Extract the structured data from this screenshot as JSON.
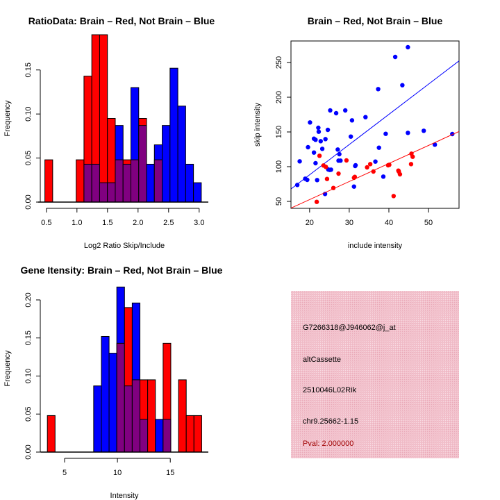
{
  "colors": {
    "brain": "#ff0000",
    "not_brain": "#0000ff",
    "overlap": "#800080",
    "info_bg": "#f2c1cc",
    "pval": "#a00000"
  },
  "chart_data": [
    {
      "type": "bar",
      "id": "ratio-hist",
      "title": "RatioData: Brain – Red, Not Brain – Blue",
      "xlabel": "Log2 Ratio Skip/Include",
      "ylabel": "Frequency",
      "xlim": [
        0.4,
        3.15
      ],
      "ylim": [
        0,
        0.19
      ],
      "xticks": [
        "0.5",
        "1.0",
        "1.5",
        "2.0",
        "2.5",
        "3.0"
      ],
      "yticks": [
        "0.00",
        "0.05",
        "0.10",
        "0.15"
      ],
      "bin_start": 0.475,
      "bin_width": 0.128,
      "series": [
        {
          "name": "Brain",
          "color": "#ff0000",
          "values": [
            0.048,
            0,
            0,
            0,
            0.048,
            0.143,
            0.19,
            0.19,
            0.095,
            0.048,
            0.048,
            0.048,
            0.095,
            0,
            0.048,
            0,
            0,
            0,
            0,
            0
          ]
        },
        {
          "name": "Not Brain",
          "color": "#0000ff",
          "values": [
            0,
            0,
            0,
            0,
            0,
            0.043,
            0.043,
            0.022,
            0.022,
            0.087,
            0.043,
            0.13,
            0.087,
            0.043,
            0.065,
            0.087,
            0.152,
            0.109,
            0.043,
            0.022
          ]
        }
      ]
    },
    {
      "type": "scatter",
      "id": "intensity-scatter",
      "title": "Brain – Red, Not Brain – Blue",
      "xlabel": "include intensity",
      "ylabel": "skip intensity",
      "xlim": [
        15.3,
        57.7
      ],
      "ylim": [
        40,
        281
      ],
      "xticks": [
        "20",
        "30",
        "40",
        "50"
      ],
      "yticks": [
        "50",
        "100",
        "150",
        "200",
        "250"
      ],
      "series": [
        {
          "name": "Not Brain",
          "color": "#0000ff",
          "fit": {
            "slope": 4.35,
            "intercept": 1.3
          },
          "points": [
            [
              16.9,
              73.7
            ],
            [
              17.5,
              107.7
            ],
            [
              18.9,
              82.7
            ],
            [
              19.4,
              81
            ],
            [
              19.6,
              128
            ],
            [
              20.1,
              163.7
            ],
            [
              21.1,
              120.3
            ],
            [
              21.1,
              140.3
            ],
            [
              21.5,
              138.7
            ],
            [
              21.5,
              105
            ],
            [
              21.9,
              80.7
            ],
            [
              22.2,
              156
            ],
            [
              22.3,
              150.3
            ],
            [
              22.8,
              136.7
            ],
            [
              23.2,
              125.7
            ],
            [
              23.9,
              60.7
            ],
            [
              24,
              139.7
            ],
            [
              24.6,
              153
            ],
            [
              24.7,
              96
            ],
            [
              25.2,
              181
            ],
            [
              25.1,
              95.3
            ],
            [
              25.4,
              95.7
            ],
            [
              26.7,
              177
            ],
            [
              27.1,
              124.7
            ],
            [
              27.5,
              118
            ],
            [
              27.3,
              108.7
            ],
            [
              27.8,
              108.7
            ],
            [
              29,
              181
            ],
            [
              30.4,
              143.3
            ],
            [
              30.7,
              166.7
            ],
            [
              31.2,
              71.3
            ],
            [
              31.5,
              101
            ],
            [
              31.6,
              102
            ],
            [
              34.1,
              171.3
            ],
            [
              36.6,
              107.3
            ],
            [
              37.3,
              211.7
            ],
            [
              37.5,
              127.3
            ],
            [
              38.6,
              85.7
            ],
            [
              39.2,
              147.3
            ],
            [
              41.6,
              258
            ],
            [
              43.4,
              217.3
            ],
            [
              44.8,
              272
            ],
            [
              44.8,
              148.7
            ],
            [
              48.8,
              151.7
            ],
            [
              51.6,
              131.7
            ],
            [
              56,
              147
            ]
          ]
        },
        {
          "name": "Brain",
          "color": "#ff0000",
          "fit": {
            "slope": 2.6,
            "intercept": 0.6
          },
          "points": [
            [
              22.5,
              115.7
            ],
            [
              21.8,
              49.3
            ],
            [
              23.5,
              101.7
            ],
            [
              24.1,
              99.7
            ],
            [
              24.4,
              82.3
            ],
            [
              26,
              69.3
            ],
            [
              27.3,
              90
            ],
            [
              29.3,
              109
            ],
            [
              31.2,
              84
            ],
            [
              31.4,
              85.3
            ],
            [
              34.5,
              99
            ],
            [
              35.3,
              103.7
            ],
            [
              36.1,
              93
            ],
            [
              39.8,
              102
            ],
            [
              40.1,
              102.7
            ],
            [
              41.2,
              57.7
            ],
            [
              42.4,
              94.3
            ],
            [
              42.5,
              93
            ],
            [
              42.8,
              89
            ],
            [
              45.6,
              103.7
            ],
            [
              45.7,
              118.7
            ],
            [
              46,
              114.3
            ]
          ]
        }
      ]
    },
    {
      "type": "bar",
      "id": "gene-intensity-hist",
      "title": "Gene Itensity: Brain – Red, Not Brain – Blue",
      "xlabel": "Intensity",
      "ylabel": "Frequency",
      "xlim": [
        2.7,
        18.6
      ],
      "ylim": [
        0,
        0.22
      ],
      "xticks": [
        "5",
        "10",
        "15"
      ],
      "yticks": [
        "0.00",
        "0.05",
        "0.10",
        "0.15",
        "0.20"
      ],
      "bin_start": 3.37,
      "bin_width": 0.73,
      "series": [
        {
          "name": "Brain",
          "color": "#ff0000",
          "values": [
            0.048,
            0,
            0,
            0,
            0,
            0,
            0,
            0,
            0,
            0.143,
            0.19,
            0.095,
            0.095,
            0.095,
            0,
            0.143,
            0,
            0.095,
            0.048,
            0.048
          ]
        },
        {
          "name": "Not Brain",
          "color": "#0000ff",
          "values": [
            0,
            0,
            0,
            0,
            0,
            0,
            0.087,
            0.152,
            0.13,
            0.217,
            0.087,
            0.196,
            0.043,
            0,
            0.043,
            0.043,
            0,
            0,
            0,
            0
          ]
        }
      ]
    }
  ],
  "info": {
    "probe_id": "G7266318@J946062@j_at",
    "event_type": "altCassette",
    "gene": "2510046L02Rik",
    "location": "chr9.25662-1.15",
    "pval": "Pval: 2.000000"
  }
}
